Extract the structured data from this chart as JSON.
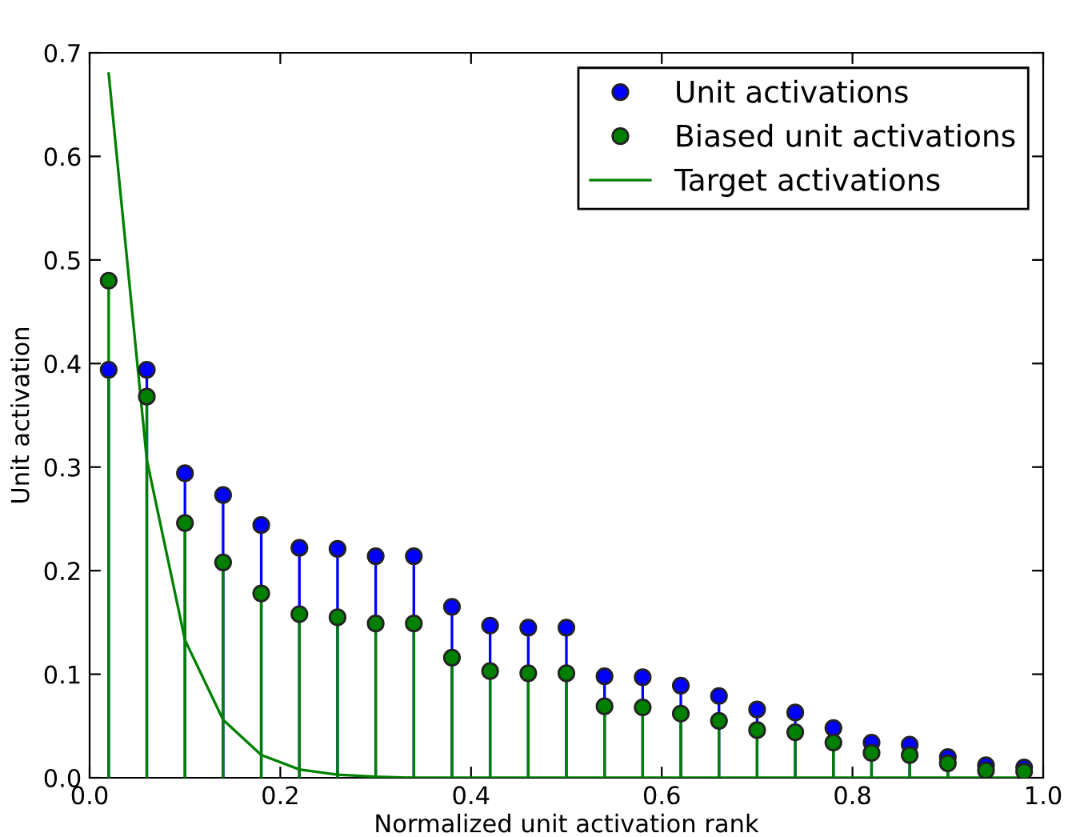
{
  "chart_data": {
    "type": "lollipop",
    "xlabel": "Normalized unit activation rank",
    "ylabel": "Unit activation",
    "x": [
      0.02,
      0.06,
      0.1,
      0.14,
      0.18,
      0.22,
      0.26,
      0.3,
      0.34,
      0.38,
      0.42,
      0.46,
      0.5,
      0.54,
      0.58,
      0.62,
      0.66,
      0.7,
      0.74,
      0.78,
      0.82,
      0.86,
      0.9,
      0.94,
      0.98
    ],
    "series": [
      {
        "name": "Unit activations",
        "color": "#0000ff",
        "marker": "circle",
        "values": [
          0.394,
          0.394,
          0.294,
          0.273,
          0.244,
          0.222,
          0.221,
          0.214,
          0.214,
          0.165,
          0.147,
          0.145,
          0.145,
          0.098,
          0.097,
          0.089,
          0.079,
          0.066,
          0.063,
          0.048,
          0.034,
          0.032,
          0.02,
          0.012,
          0.01
        ]
      },
      {
        "name": "Biased unit activations",
        "color": "#008000",
        "marker": "circle",
        "values": [
          0.48,
          0.368,
          0.246,
          0.208,
          0.178,
          0.158,
          0.155,
          0.149,
          0.149,
          0.116,
          0.103,
          0.101,
          0.101,
          0.069,
          0.068,
          0.062,
          0.055,
          0.046,
          0.044,
          0.034,
          0.024,
          0.022,
          0.014,
          0.007,
          0.006
        ]
      },
      {
        "name": "Target activations",
        "type": "line",
        "color": "#008000",
        "line_style": "solid",
        "values": [
          0.68,
          0.307,
          0.133,
          0.056,
          0.022,
          0.008,
          0.003,
          0.001,
          0,
          0,
          0,
          0,
          0,
          0,
          0,
          0,
          0,
          0,
          0,
          0,
          0,
          0,
          0,
          0,
          0
        ]
      }
    ],
    "xlim": [
      0.0,
      1.0
    ],
    "xticks": [
      {
        "value": 0.0,
        "label": "0.0"
      },
      0.2,
      0.4,
      0.6,
      0.8,
      {
        "value": 1.0,
        "label": "1.0"
      }
    ],
    "ylim": [
      0.0,
      0.7
    ],
    "yticks": [
      {
        "value": 0.0,
        "label": "0.0"
      },
      0.1,
      0.2,
      0.3,
      0.4,
      0.5,
      0.6,
      0.7
    ],
    "legend": "top right",
    "grid": false
  }
}
